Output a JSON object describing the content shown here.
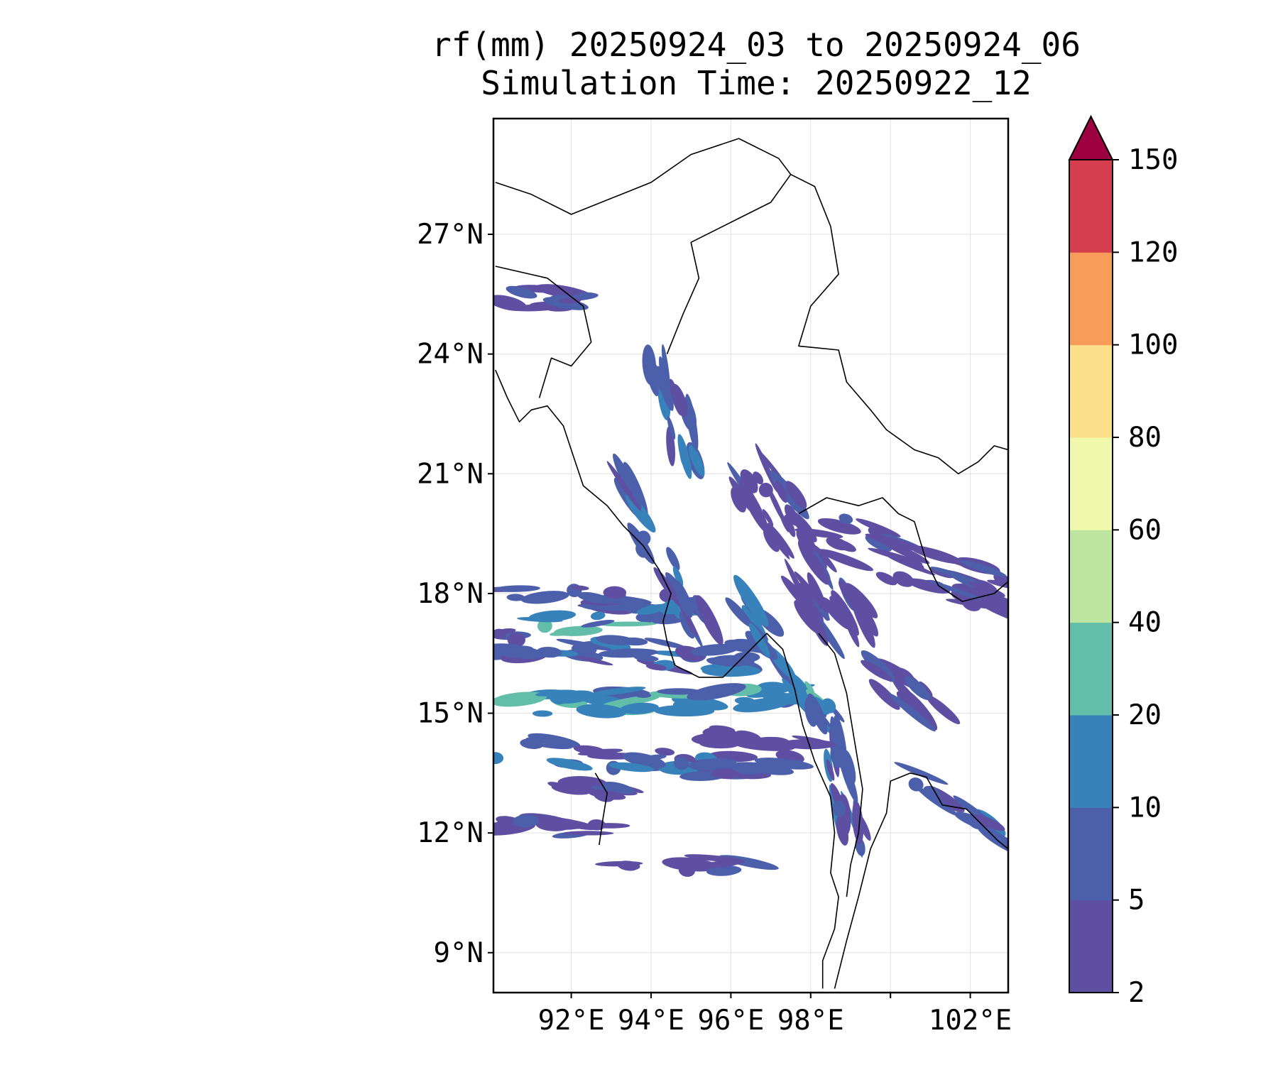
{
  "title": {
    "line1": "rf(mm) 20250924_03 to 20250924_06",
    "line2": "Simulation Time: 20250922_12"
  },
  "map": {
    "lon_range": [
      90.05,
      102.95
    ],
    "lat_range": [
      8.0,
      29.9
    ],
    "lat_ticks": [
      {
        "value": 27,
        "label": "27°N"
      },
      {
        "value": 24,
        "label": "24°N"
      },
      {
        "value": 21,
        "label": "21°N"
      },
      {
        "value": 18,
        "label": "18°N"
      },
      {
        "value": 15,
        "label": "15°N"
      },
      {
        "value": 12,
        "label": "12°N"
      },
      {
        "value": 9,
        "label": "9°N"
      }
    ],
    "lon_ticks": [
      {
        "value": 92,
        "label": "92°E"
      },
      {
        "value": 94,
        "label": "94°E"
      },
      {
        "value": 96,
        "label": "96°E"
      },
      {
        "value": 98,
        "label": "98°E"
      },
      {
        "value": 100,
        "label": ""
      },
      {
        "value": 102,
        "label": "102°E"
      }
    ],
    "gridlines": true,
    "rain_bands": [
      {
        "level": 1,
        "from": [
          90.1,
          16.8
        ],
        "to": [
          96.8,
          16.3
        ],
        "w": 0.55
      },
      {
        "level": 2,
        "from": [
          90.1,
          15.2
        ],
        "to": [
          97.8,
          15.4
        ],
        "w": 0.35
      },
      {
        "level": 1,
        "from": [
          90.1,
          14.1
        ],
        "to": [
          97.5,
          13.6
        ],
        "w": 0.45
      },
      {
        "level": 1,
        "from": [
          90.1,
          18.0
        ],
        "to": [
          94.6,
          17.7
        ],
        "w": 0.35
      },
      {
        "level": 2,
        "from": [
          91.2,
          17.2
        ],
        "to": [
          95.2,
          17.6
        ],
        "w": 0.3
      },
      {
        "level": 2,
        "from": [
          96.2,
          17.6
        ],
        "to": [
          98.5,
          14.8
        ],
        "w": 0.6
      },
      {
        "level": 1,
        "from": [
          93.2,
          20.8
        ],
        "to": [
          95.3,
          17.0
        ],
        "w": 0.45
      },
      {
        "level": 1,
        "from": [
          94.2,
          24.0
        ],
        "to": [
          95.0,
          20.8
        ],
        "w": 0.55
      },
      {
        "level": 0,
        "from": [
          96.5,
          21.0
        ],
        "to": [
          99.0,
          17.0
        ],
        "w": 1.2
      },
      {
        "level": 0,
        "from": [
          98.2,
          19.5
        ],
        "to": [
          102.9,
          18.0
        ],
        "w": 1.0
      },
      {
        "level": 1,
        "from": [
          98.2,
          15.5
        ],
        "to": [
          99.2,
          11.5
        ],
        "w": 0.45
      },
      {
        "level": 1,
        "from": [
          100.3,
          13.6
        ],
        "to": [
          102.9,
          12.0
        ],
        "w": 0.35
      },
      {
        "level": 0,
        "from": [
          90.1,
          25.5
        ],
        "to": [
          92.3,
          25.3
        ],
        "w": 0.3
      },
      {
        "level": 0,
        "from": [
          90.1,
          12.2
        ],
        "to": [
          93.2,
          12.0
        ],
        "w": 0.2
      },
      {
        "level": 0,
        "from": [
          92.6,
          11.3
        ],
        "to": [
          96.6,
          11.2
        ],
        "w": 0.2
      },
      {
        "level": 0,
        "from": [
          91.7,
          13.2
        ],
        "to": [
          93.7,
          12.9
        ],
        "w": 0.25
      },
      {
        "level": 0,
        "from": [
          95.6,
          14.4
        ],
        "to": [
          98.0,
          14.2
        ],
        "w": 0.25
      },
      {
        "level": 0,
        "from": [
          99.6,
          16.2
        ],
        "to": [
          101.3,
          14.8
        ],
        "w": 0.6
      }
    ]
  },
  "colorbar": {
    "levels": [
      2,
      5,
      10,
      20,
      40,
      60,
      80,
      100,
      120,
      150
    ],
    "tick_labels": [
      "2",
      "5",
      "10",
      "20",
      "40",
      "60",
      "80",
      "100",
      "120",
      "150"
    ],
    "colors": [
      "#5e4fa2",
      "#4c5fab",
      "#3882bb",
      "#62bda9",
      "#bde5a0",
      "#f0f8ab",
      "#fbdf8a",
      "#f89d59",
      "#d53e4f",
      "#9e0142"
    ],
    "extend": "max"
  },
  "colors": {
    "coastline": "#000000",
    "grid": "#e6e6e6"
  }
}
